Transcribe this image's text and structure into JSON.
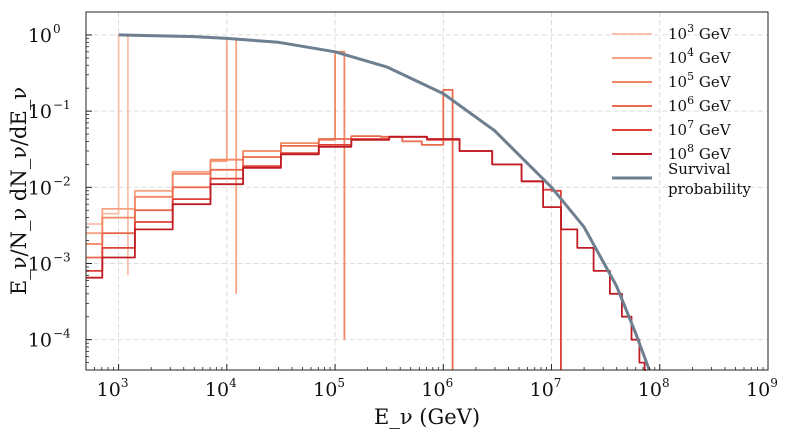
{
  "chart_data": {
    "type": "line",
    "title": "",
    "xlabel": "E_ν (GeV)",
    "ylabel": "E_ν/N_ν dN_ν/dE_ν",
    "xscale": "log",
    "yscale": "log",
    "xlim": [
      500,
      1000000000
    ],
    "ylim": [
      4e-05,
      2
    ],
    "grid": true,
    "legend_position": "top-right",
    "x_ticks": [
      {
        "base": "10",
        "exp": "3",
        "value": 1000
      },
      {
        "base": "10",
        "exp": "4",
        "value": 10000
      },
      {
        "base": "10",
        "exp": "5",
        "value": 100000
      },
      {
        "base": "10",
        "exp": "6",
        "value": 1000000
      },
      {
        "base": "10",
        "exp": "7",
        "value": 10000000
      },
      {
        "base": "10",
        "exp": "8",
        "value": 100000000
      },
      {
        "base": "10",
        "exp": "9",
        "value": 1000000000
      }
    ],
    "y_ticks": [
      {
        "base": "10",
        "exp": "0",
        "value": 1
      },
      {
        "base": "10",
        "exp": "−1",
        "value": 0.1
      },
      {
        "base": "10",
        "exp": "−2",
        "value": 0.01
      },
      {
        "base": "10",
        "exp": "−3",
        "value": 0.001
      },
      {
        "base": "10",
        "exp": "−4",
        "value": 0.0001
      }
    ],
    "series": [
      {
        "name": "10^3 GeV",
        "label_base": "10",
        "label_exp": "3",
        "label_unit": " GeV",
        "color": "#f9c0aa",
        "injection_energy": 1000,
        "type": "step",
        "points": [
          [
            500,
            0.0033
          ],
          [
            1000,
            0.0045
          ],
          [
            1000,
            1.0
          ],
          [
            1220,
            1.0
          ],
          [
            1220,
            0.0007
          ]
        ]
      },
      {
        "name": "10^4 GeV",
        "label_base": "10",
        "label_exp": "4",
        "label_unit": " GeV",
        "color": "#f6a283",
        "injection_energy": 10000,
        "type": "step",
        "points": [
          [
            500,
            0.0025
          ],
          [
            1000,
            0.0052
          ],
          [
            2000,
            0.009
          ],
          [
            5000,
            0.016
          ],
          [
            10000,
            0.022
          ],
          [
            10000,
            0.9
          ],
          [
            12200,
            0.9
          ],
          [
            12200,
            0.0004
          ]
        ]
      },
      {
        "name": "10^5 GeV",
        "label_base": "10",
        "label_exp": "5",
        "label_unit": " GeV",
        "color": "#f28763",
        "injection_energy": 100000,
        "type": "step",
        "points": [
          [
            500,
            0.0018
          ],
          [
            1000,
            0.004
          ],
          [
            2000,
            0.0075
          ],
          [
            5000,
            0.015
          ],
          [
            10000,
            0.023
          ],
          [
            20000,
            0.03
          ],
          [
            50000,
            0.038
          ],
          [
            100000,
            0.042
          ],
          [
            100000,
            0.6
          ],
          [
            122000,
            0.6
          ],
          [
            122000,
            0.0001
          ]
        ]
      },
      {
        "name": "10^6 GeV",
        "label_base": "10",
        "label_exp": "6",
        "label_unit": " GeV",
        "color": "#e96a4c",
        "injection_energy": 1000000,
        "type": "step",
        "points": [
          [
            500,
            0.0012
          ],
          [
            1000,
            0.0025
          ],
          [
            2000,
            0.005
          ],
          [
            5000,
            0.01
          ],
          [
            10000,
            0.017
          ],
          [
            20000,
            0.025
          ],
          [
            50000,
            0.035
          ],
          [
            100000,
            0.043
          ],
          [
            200000,
            0.047
          ],
          [
            350000,
            0.046
          ],
          [
            500000,
            0.04
          ],
          [
            800000,
            0.036
          ],
          [
            1000000,
            0.036
          ],
          [
            1000000,
            0.19
          ],
          [
            1220000,
            0.19
          ],
          [
            1220000,
            4e-05
          ]
        ]
      },
      {
        "name": "10^7 GeV",
        "label_base": "10",
        "label_exp": "7",
        "label_unit": " GeV",
        "color": "#dd4137",
        "injection_energy": 10000000,
        "type": "step",
        "points": [
          [
            500,
            0.0008
          ],
          [
            1000,
            0.0016
          ],
          [
            2000,
            0.0035
          ],
          [
            5000,
            0.007
          ],
          [
            10000,
            0.013
          ],
          [
            20000,
            0.019
          ],
          [
            50000,
            0.028
          ],
          [
            100000,
            0.036
          ],
          [
            200000,
            0.043
          ],
          [
            500000,
            0.046
          ],
          [
            1000000,
            0.042
          ],
          [
            2000000,
            0.03
          ],
          [
            4000000,
            0.02
          ],
          [
            7000000,
            0.012
          ],
          [
            10000000,
            0.0093
          ],
          [
            10000000,
            0.009
          ],
          [
            12200000,
            0.009
          ],
          [
            12200000,
            4e-05
          ]
        ]
      },
      {
        "name": "10^8 GeV",
        "label_base": "10",
        "label_exp": "8",
        "label_unit": " GeV",
        "color": "#bf1d25",
        "injection_energy": 100000000,
        "type": "step",
        "points": [
          [
            500,
            0.00065
          ],
          [
            1000,
            0.0012
          ],
          [
            2000,
            0.0028
          ],
          [
            5000,
            0.006
          ],
          [
            10000,
            0.011
          ],
          [
            20000,
            0.018
          ],
          [
            50000,
            0.027
          ],
          [
            100000,
            0.034
          ],
          [
            200000,
            0.042
          ],
          [
            500000,
            0.046
          ],
          [
            1000000,
            0.043
          ],
          [
            2000000,
            0.03
          ],
          [
            4000000,
            0.02
          ],
          [
            7000000,
            0.012
          ],
          [
            10000000,
            0.0055
          ],
          [
            15000000,
            0.0028
          ],
          [
            20000000,
            0.0016
          ],
          [
            30000000,
            0.0008
          ],
          [
            40000000,
            0.0004
          ],
          [
            50000000,
            0.0002
          ],
          [
            60000000,
            0.0001
          ],
          [
            70000000,
            5e-05
          ],
          [
            75000000,
            4e-05
          ]
        ]
      },
      {
        "name": "Survival probability",
        "label_lines": [
          "Survival",
          "probability"
        ],
        "color": "#6e7f90",
        "type": "line",
        "points": [
          [
            1000,
            1.0
          ],
          [
            5000,
            0.95
          ],
          [
            10000,
            0.9
          ],
          [
            30000,
            0.8
          ],
          [
            100000,
            0.6
          ],
          [
            300000,
            0.38
          ],
          [
            1000000,
            0.17
          ],
          [
            3000000,
            0.055
          ],
          [
            10000000,
            0.01
          ],
          [
            20000000,
            0.003
          ],
          [
            40000000,
            0.0005
          ],
          [
            60000000,
            0.00012
          ],
          [
            80000000,
            4e-05
          ]
        ]
      }
    ]
  }
}
